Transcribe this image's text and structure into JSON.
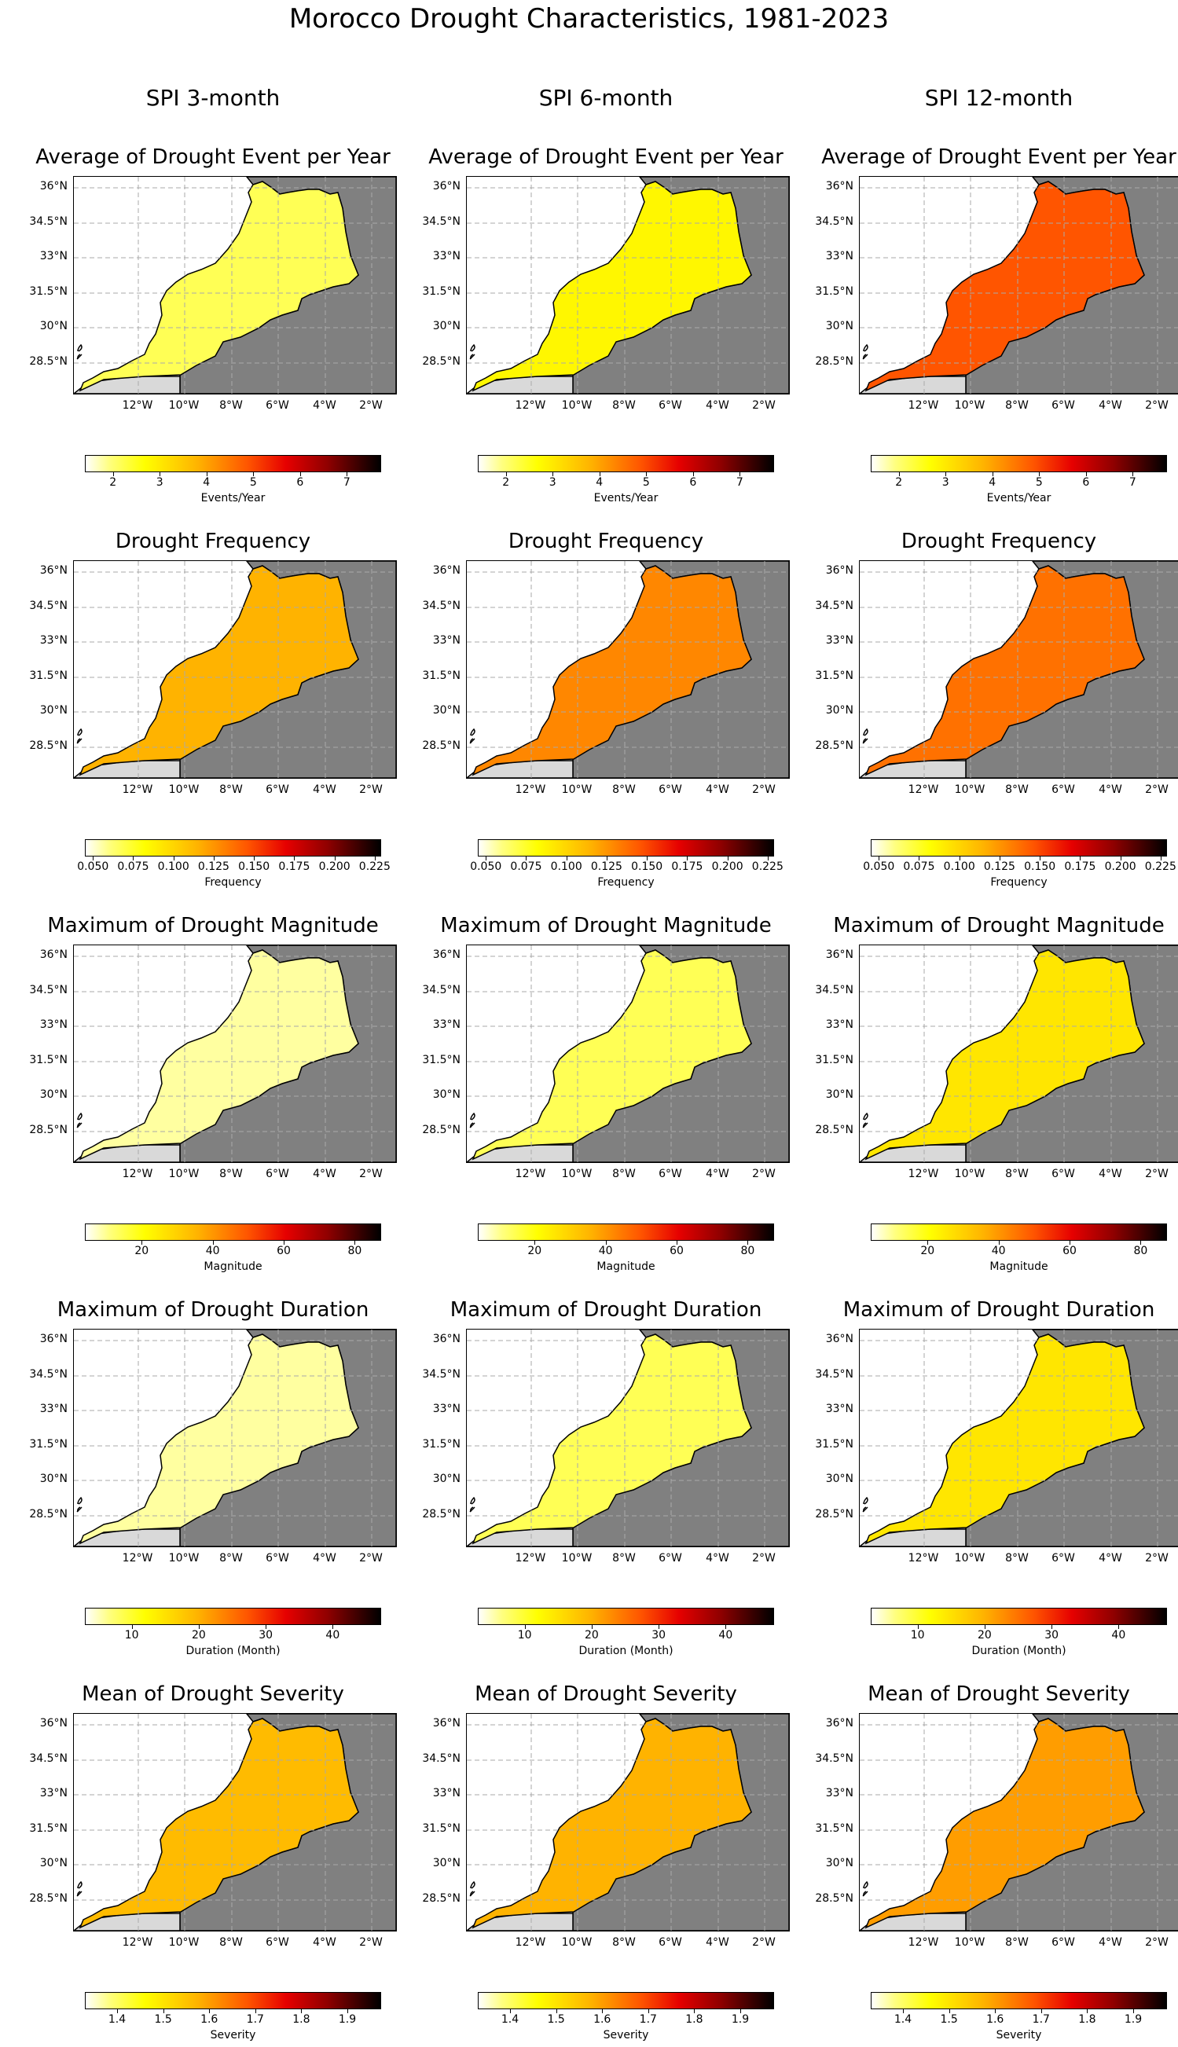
{
  "title": "Morocco Drought Characteristics, 1981-2023",
  "columns": [
    "SPI 3-month",
    "SPI 6-month",
    "SPI 12-month"
  ],
  "map_axes": {
    "lat_ticks": [
      "36°N",
      "34.5°N",
      "33°N",
      "31.5°N",
      "30°N",
      "28.5°N"
    ],
    "lon_ticks": [
      "12°W",
      "10°W",
      "8°W",
      "6°W",
      "4°W",
      "2°W"
    ]
  },
  "colors": {
    "land_outside": "#808080",
    "gridline": "#aaaaaa",
    "disputed_strip": "#d9d9d9",
    "colormap": "hot_r"
  },
  "rows": [
    {
      "title": "Average of Drought Event per Year",
      "colorbar": {
        "label": "Events/Year",
        "range": [
          1.4,
          7.7
        ],
        "ticks": [
          "2",
          "3",
          "4",
          "5",
          "6",
          "7"
        ],
        "tick_values": [
          2,
          3,
          4,
          5,
          6,
          7
        ]
      },
      "fill_levels": [
        0.12,
        0.22,
        0.55
      ]
    },
    {
      "title": "Drought Frequency",
      "colorbar": {
        "label": "Frequency",
        "range": [
          0.045,
          0.228
        ],
        "ticks": [
          "0.050",
          "0.075",
          "0.100",
          "0.125",
          "0.150",
          "0.175",
          "0.200",
          "0.225"
        ],
        "tick_values": [
          0.05,
          0.075,
          0.1,
          0.125,
          0.15,
          0.175,
          0.2,
          0.225
        ]
      },
      "fill_levels": [
        0.38,
        0.46,
        0.5
      ]
    },
    {
      "title": "Maximum of Drought Magnitude",
      "colorbar": {
        "label": "Magnitude",
        "range": [
          4,
          87
        ],
        "ticks": [
          "20",
          "40",
          "60",
          "80"
        ],
        "tick_values": [
          20,
          40,
          60,
          80
        ]
      },
      "fill_levels": [
        0.06,
        0.12,
        0.26
      ]
    },
    {
      "title": "Maximum of Drought Duration",
      "colorbar": {
        "label": "Duration (Month)",
        "range": [
          3,
          47
        ],
        "ticks": [
          "10",
          "20",
          "30",
          "40"
        ],
        "tick_values": [
          10,
          20,
          30,
          40
        ]
      },
      "fill_levels": [
        0.06,
        0.12,
        0.26
      ]
    },
    {
      "title": "Mean of Drought Severity",
      "colorbar": {
        "label": "Severity",
        "range": [
          1.33,
          1.97
        ],
        "ticks": [
          "1.4",
          "1.5",
          "1.6",
          "1.7",
          "1.8",
          "1.9"
        ],
        "tick_values": [
          1.4,
          1.5,
          1.6,
          1.7,
          1.8,
          1.9
        ]
      },
      "fill_levels": [
        0.36,
        0.38,
        0.42
      ]
    }
  ]
}
